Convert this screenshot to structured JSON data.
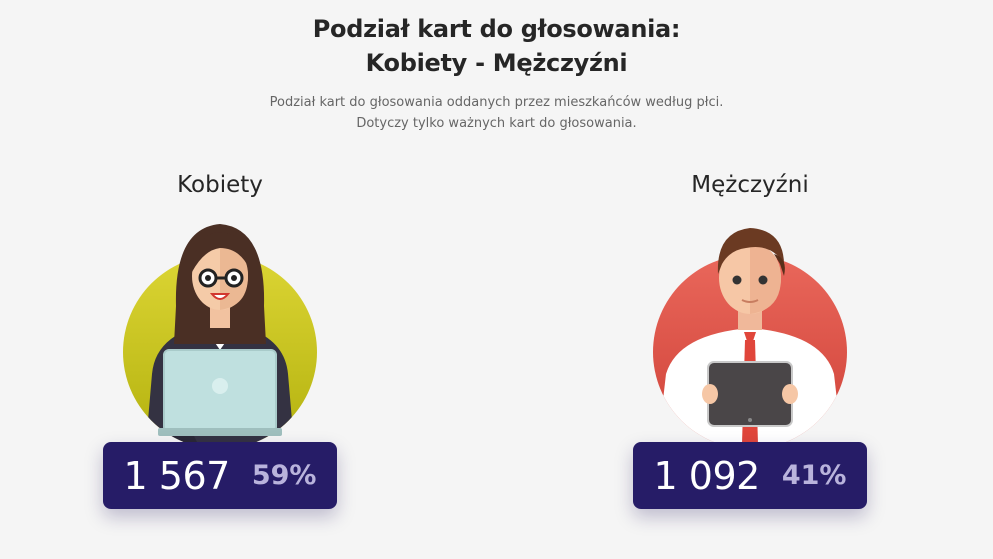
{
  "header": {
    "title_line1": "Podział kart do głosowania:",
    "title_line2": "Kobiety - Mężczyźni",
    "subtitle_line1": "Podział kart do głosowania oddanych przez mieszkańców według płci.",
    "subtitle_line2": "Dotyczy tylko ważnych kart do głosowania."
  },
  "women": {
    "label": "Kobiety",
    "count": "1 567",
    "percent": "59%",
    "circle_color": "#c9c71f",
    "icon": "woman-with-laptop-illustration"
  },
  "men": {
    "label": "Mężczyźni",
    "count": "1 092",
    "percent": "41%",
    "circle_color": "#e4574b",
    "icon": "man-with-tablet-illustration"
  },
  "colors": {
    "stat_bg": "#261c67",
    "stat_pct": "#b9b3dc"
  }
}
